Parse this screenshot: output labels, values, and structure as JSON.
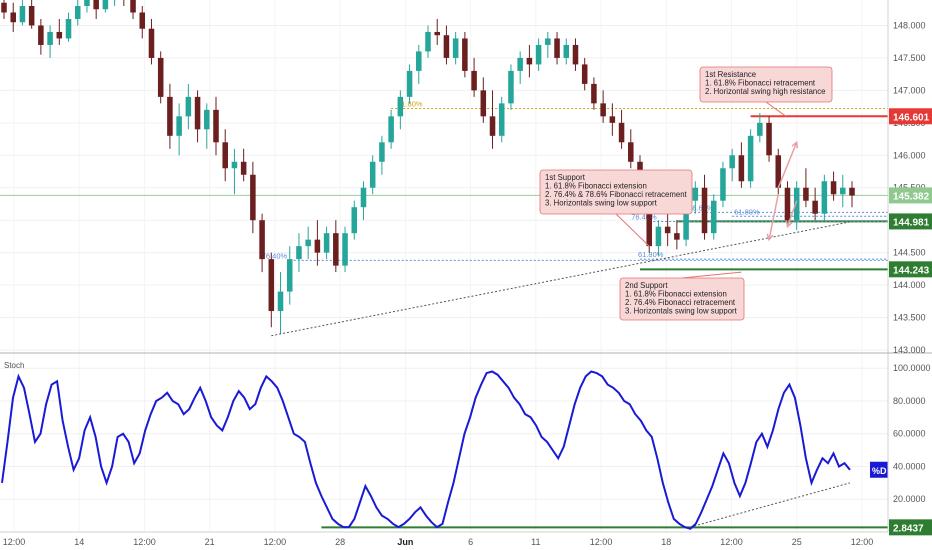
{
  "chart_data": [
    {
      "type": "candlestick",
      "title": "",
      "price_axis_ticks": [
        "148.000",
        "147.500",
        "147.000",
        "146.500",
        "146.000",
        "145.500",
        "145.000",
        "144.500",
        "144.000",
        "143.500",
        "143.000"
      ],
      "ylim": [
        143.0,
        148.3
      ],
      "time_axis_ticks": [
        "12:00",
        "14",
        "12:00",
        "21",
        "12:00",
        "28",
        "Jun",
        "6",
        "11",
        "12:00",
        "18",
        "12:00",
        "25",
        "12:00"
      ],
      "candles": [
        [
          148.35,
          148.42,
          148.1,
          148.2
        ],
        [
          148.2,
          148.35,
          147.9,
          148.05
        ],
        [
          148.05,
          148.4,
          148.0,
          148.3
        ],
        [
          148.3,
          148.45,
          147.95,
          148.0
        ],
        [
          148.0,
          148.1,
          147.55,
          147.7
        ],
        [
          147.7,
          148.0,
          147.5,
          147.9
        ],
        [
          147.9,
          148.1,
          147.7,
          147.8
        ],
        [
          147.8,
          148.2,
          147.75,
          148.1
        ],
        [
          148.1,
          148.4,
          148.0,
          148.3
        ],
        [
          148.3,
          148.5,
          148.2,
          148.4
        ],
        [
          148.4,
          148.5,
          148.1,
          148.25
        ],
        [
          148.25,
          148.5,
          148.2,
          148.45
        ],
        [
          148.45,
          148.55,
          148.3,
          148.5
        ],
        [
          148.5,
          148.55,
          148.3,
          148.4
        ],
        [
          148.4,
          148.5,
          148.1,
          148.2
        ],
        [
          148.2,
          148.3,
          147.8,
          147.95
        ],
        [
          147.95,
          148.1,
          147.4,
          147.5
        ],
        [
          147.5,
          147.6,
          146.8,
          146.9
        ],
        [
          146.9,
          147.1,
          146.1,
          146.3
        ],
        [
          146.3,
          146.8,
          146.0,
          146.6
        ],
        [
          146.6,
          147.1,
          146.4,
          146.9
        ],
        [
          146.9,
          147.0,
          146.2,
          146.4
        ],
        [
          146.4,
          146.8,
          146.1,
          146.7
        ],
        [
          146.7,
          146.9,
          146.0,
          146.2
        ],
        [
          146.2,
          146.4,
          145.6,
          145.8
        ],
        [
          145.8,
          146.1,
          145.4,
          145.9
        ],
        [
          145.9,
          146.1,
          145.6,
          145.7
        ],
        [
          145.7,
          145.9,
          144.8,
          145.0
        ],
        [
          145.0,
          145.1,
          144.2,
          144.4
        ],
        [
          144.4,
          144.5,
          143.35,
          143.6
        ],
        [
          143.6,
          144.2,
          143.25,
          143.9
        ],
        [
          143.9,
          144.6,
          143.7,
          144.4
        ],
        [
          144.4,
          144.8,
          144.2,
          144.6
        ],
        [
          144.6,
          144.9,
          144.4,
          144.7
        ],
        [
          144.7,
          145.0,
          144.3,
          144.5
        ],
        [
          144.5,
          144.9,
          144.4,
          144.8
        ],
        [
          144.8,
          145.0,
          144.2,
          144.3
        ],
        [
          144.3,
          144.9,
          144.2,
          144.8
        ],
        [
          144.8,
          145.3,
          144.7,
          145.2
        ],
        [
          145.2,
          145.6,
          145.0,
          145.5
        ],
        [
          145.5,
          146.0,
          145.4,
          145.9
        ],
        [
          145.9,
          146.3,
          145.7,
          146.2
        ],
        [
          146.2,
          146.7,
          146.1,
          146.6
        ],
        [
          146.6,
          147.0,
          146.4,
          146.9
        ],
        [
          146.9,
          147.4,
          146.8,
          147.3
        ],
        [
          147.3,
          147.7,
          147.1,
          147.6
        ],
        [
          147.6,
          148.0,
          147.5,
          147.9
        ],
        [
          147.9,
          148.1,
          147.7,
          147.85
        ],
        [
          147.85,
          148.0,
          147.4,
          147.5
        ],
        [
          147.5,
          147.9,
          147.4,
          147.8
        ],
        [
          147.8,
          147.9,
          147.2,
          147.3
        ],
        [
          147.3,
          147.5,
          146.9,
          147.0
        ],
        [
          147.0,
          147.2,
          146.5,
          146.6
        ],
        [
          146.6,
          147.0,
          146.1,
          146.3
        ],
        [
          146.3,
          146.9,
          146.2,
          146.8
        ],
        [
          146.8,
          147.4,
          146.7,
          147.3
        ],
        [
          147.3,
          147.6,
          147.1,
          147.5
        ],
        [
          147.5,
          147.7,
          147.2,
          147.4
        ],
        [
          147.4,
          147.8,
          147.3,
          147.7
        ],
        [
          147.7,
          147.9,
          147.5,
          147.8
        ],
        [
          147.8,
          147.9,
          147.4,
          147.5
        ],
        [
          147.5,
          147.8,
          147.4,
          147.7
        ],
        [
          147.7,
          147.8,
          147.3,
          147.4
        ],
        [
          147.4,
          147.5,
          147.0,
          147.1
        ],
        [
          147.1,
          147.2,
          146.7,
          146.8
        ],
        [
          146.8,
          147.0,
          146.5,
          146.6
        ],
        [
          146.6,
          146.8,
          146.3,
          146.5
        ],
        [
          146.5,
          146.7,
          146.1,
          146.2
        ],
        [
          146.2,
          146.4,
          145.8,
          145.9
        ],
        [
          145.9,
          146.0,
          145.2,
          145.3
        ],
        [
          145.3,
          145.4,
          144.5,
          144.6
        ],
        [
          144.6,
          145.0,
          144.45,
          144.9
        ],
        [
          144.9,
          145.1,
          144.6,
          144.8
        ],
        [
          144.8,
          145.0,
          144.55,
          144.7
        ],
        [
          144.7,
          145.4,
          144.6,
          145.3
        ],
        [
          145.3,
          145.6,
          145.1,
          145.5
        ],
        [
          145.5,
          145.7,
          144.7,
          144.8
        ],
        [
          144.8,
          145.4,
          144.7,
          145.3
        ],
        [
          145.3,
          145.9,
          145.2,
          145.8
        ],
        [
          145.8,
          146.1,
          145.6,
          146.0
        ],
        [
          146.0,
          146.2,
          145.5,
          145.6
        ],
        [
          145.6,
          146.4,
          145.5,
          146.3
        ],
        [
          146.3,
          146.65,
          146.2,
          146.5
        ],
        [
          146.5,
          146.6,
          145.9,
          146.0
        ],
        [
          146.0,
          146.1,
          145.4,
          145.5
        ],
        [
          145.5,
          145.6,
          144.9,
          145.0
        ],
        [
          145.0,
          145.6,
          144.85,
          145.5
        ],
        [
          145.5,
          145.8,
          145.2,
          145.3
        ],
        [
          145.3,
          145.5,
          145.0,
          145.1
        ],
        [
          145.1,
          145.7,
          145.0,
          145.6
        ],
        [
          145.6,
          145.75,
          145.3,
          145.4
        ],
        [
          145.4,
          145.7,
          145.2,
          145.5
        ],
        [
          145.5,
          145.6,
          145.2,
          145.38
        ]
      ],
      "last_price": "145.382",
      "level_resistance": "146.601",
      "level_support_1": "144.981",
      "level_support_2": "144.243",
      "fib_labels": [
        "61.80%",
        "76.40%",
        "76.40%",
        "78.60%",
        "61.80%",
        "61.80%"
      ],
      "callout_resistance": [
        "1st Resistance",
        "1. 61.8% Fibonacci retracement",
        "2. Horizontal swing high resistance"
      ],
      "callout_support_1": [
        "1st Support",
        "1. 61.8% Fibonacci extension",
        "2. 76.4% & 78.6% Fibonacci retracement",
        "3. Horizontals swing low support"
      ],
      "callout_support_2": [
        "2nd Support",
        "1. 61.8% Fibonacci extension",
        "2. 76.4% Fibonacci retracement",
        "3. Horizontals swing low support"
      ],
      "colors": {
        "up": "#26a69a",
        "down": "#6b1f1f",
        "resistance": "#e53935",
        "support": "#2e7d32",
        "fib_gold": "#d4a017",
        "fib_blue": "#5b8dd9",
        "callout_bg": "#f8d7d7",
        "callout_border": "#e57373"
      }
    },
    {
      "type": "line",
      "series": [
        {
          "name": "%D",
          "values": [
            30,
            55,
            82,
            95,
            88,
            72,
            55,
            60,
            78,
            90,
            92,
            68,
            52,
            38,
            45,
            62,
            70,
            58,
            40,
            30,
            40,
            58,
            60,
            55,
            42,
            48,
            62,
            72,
            80,
            82,
            85,
            80,
            78,
            72,
            75,
            82,
            88,
            80,
            70,
            65,
            62,
            70,
            80,
            86,
            82,
            75,
            78,
            88,
            95,
            92,
            88,
            80,
            70,
            60,
            58,
            55,
            42,
            30,
            22,
            15,
            8,
            5,
            3,
            3,
            8,
            18,
            28,
            22,
            15,
            10,
            8,
            5,
            3,
            5,
            8,
            12,
            15,
            10,
            6,
            3,
            5,
            18,
            30,
            45,
            60,
            70,
            82,
            90,
            97,
            98,
            96,
            92,
            88,
            82,
            78,
            72,
            70,
            65,
            58,
            55,
            50,
            45,
            52,
            65,
            78,
            88,
            95,
            98,
            97,
            95,
            90,
            88,
            85,
            80,
            78,
            72,
            68,
            62,
            58,
            45,
            30,
            18,
            8,
            5,
            3,
            2,
            5,
            12,
            20,
            28,
            38,
            48,
            42,
            30,
            22,
            30,
            42,
            55,
            60,
            52,
            62,
            75,
            85,
            90,
            82,
            65,
            45,
            30,
            38,
            45,
            42,
            48,
            40,
            42,
            38
          ]
        }
      ],
      "ylabel": "Stoch",
      "ytick_labels": [
        "100.0000",
        "80.0000",
        "60.0000",
        "40.0000",
        "20.0000"
      ],
      "ylim": [
        0,
        105
      ],
      "last_value_label": "%D",
      "level_value": "2.8437"
    }
  ]
}
